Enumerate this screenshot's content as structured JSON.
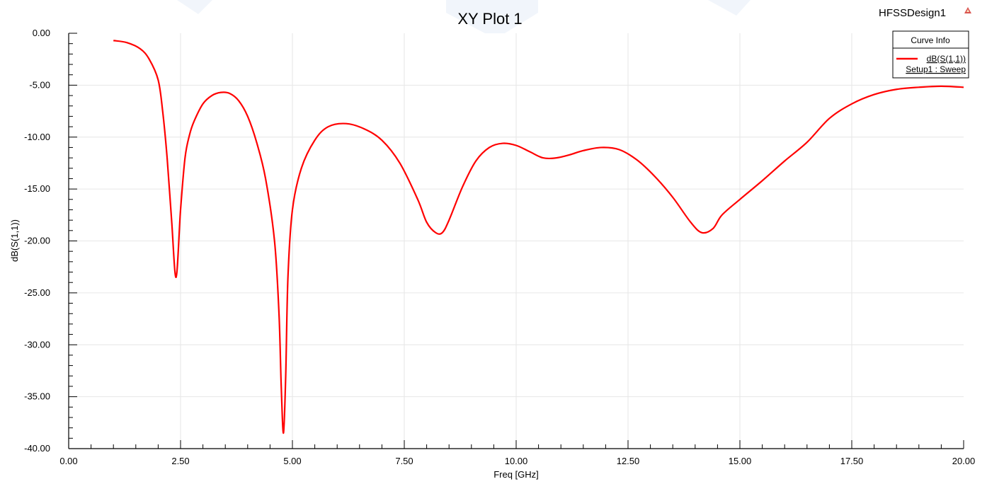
{
  "chart_data": {
    "type": "line",
    "title": "XY Plot 1",
    "design_name": "HFSSDesign1",
    "xlabel": "Freq [GHz]",
    "ylabel": "dB(S(1,1))",
    "xlim": [
      0,
      20
    ],
    "ylim": [
      -40,
      0
    ],
    "x_ticks": [
      "0.00",
      "2.50",
      "5.00",
      "7.50",
      "10.00",
      "12.50",
      "15.00",
      "17.50",
      "20.00"
    ],
    "y_ticks": [
      "0.00",
      "-5.00",
      "-10.00",
      "-15.00",
      "-20.00",
      "-25.00",
      "-30.00",
      "-35.00",
      "-40.00"
    ],
    "grid": true,
    "legend": {
      "title": "Curve Info",
      "placement": "top-right",
      "entries": [
        {
          "name": "dB(S(1,1))",
          "setup": "Setup1 : Sweep",
          "color": "#ff0000"
        }
      ]
    },
    "series": [
      {
        "name": "dB(S(1,1))",
        "color": "#ff0000",
        "x": [
          1.0,
          1.3,
          1.6,
          1.8,
          2.0,
          2.1,
          2.2,
          2.3,
          2.4,
          2.5,
          2.6,
          2.7,
          2.8,
          3.0,
          3.2,
          3.4,
          3.6,
          3.8,
          4.0,
          4.2,
          4.4,
          4.6,
          4.7,
          4.75,
          4.8,
          4.85,
          4.9,
          5.0,
          5.2,
          5.5,
          5.8,
          6.2,
          6.6,
          7.0,
          7.4,
          7.8,
          8.0,
          8.2,
          8.35,
          8.5,
          8.8,
          9.1,
          9.4,
          9.7,
          10.0,
          10.3,
          10.6,
          10.9,
          11.2,
          11.5,
          11.9,
          12.3,
          12.7,
          13.1,
          13.5,
          13.9,
          14.15,
          14.4,
          14.6,
          15.0,
          15.5,
          16.0,
          16.5,
          17.0,
          17.5,
          18.0,
          18.5,
          19.0,
          19.5,
          20.0
        ],
        "y": [
          -0.7,
          -0.9,
          -1.5,
          -2.5,
          -4.5,
          -7.5,
          -12.0,
          -18.0,
          -23.5,
          -17.0,
          -12.0,
          -9.8,
          -8.5,
          -6.8,
          -6.0,
          -5.7,
          -5.8,
          -6.5,
          -8.0,
          -10.5,
          -14.0,
          -20.0,
          -27.0,
          -34.0,
          -38.5,
          -33.0,
          -23.5,
          -17.0,
          -13.0,
          -10.3,
          -9.0,
          -8.7,
          -9.2,
          -10.3,
          -12.5,
          -16.0,
          -18.2,
          -19.2,
          -19.2,
          -18.0,
          -14.8,
          -12.3,
          -11.0,
          -10.6,
          -10.8,
          -11.4,
          -12.0,
          -12.0,
          -11.7,
          -11.3,
          -11.0,
          -11.2,
          -12.2,
          -13.8,
          -15.8,
          -18.2,
          -19.2,
          -18.8,
          -17.5,
          -16.0,
          -14.2,
          -12.3,
          -10.5,
          -8.2,
          -6.8,
          -5.9,
          -5.4,
          -5.2,
          -5.1,
          -5.2
        ]
      }
    ]
  }
}
